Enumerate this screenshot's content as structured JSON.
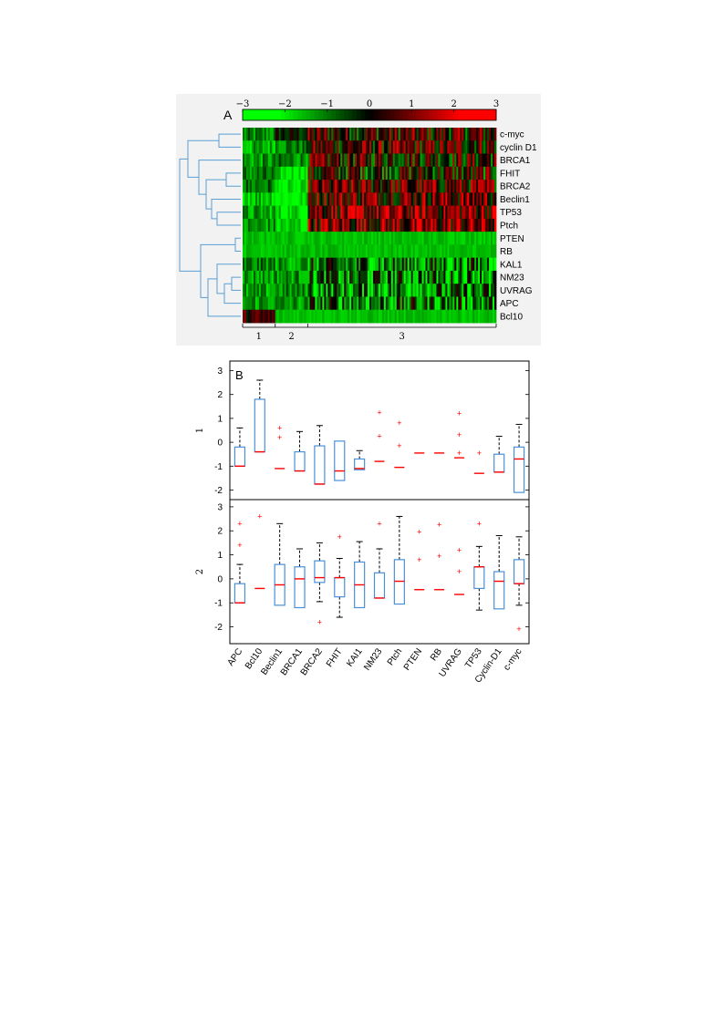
{
  "panel_labels": {
    "a": "A",
    "b": "B"
  },
  "colors": {
    "neg": "#00ff00",
    "mid": "#000000",
    "pos": "#ff0000",
    "dendrogram": "#5a9fd4",
    "box": "#4a90d9",
    "median": "#ff0000",
    "outlier": "#ff0000"
  },
  "chart_data": [
    {
      "type": "heatmap",
      "title": "",
      "colorbar": {
        "ticks": [
          "−3",
          "−2",
          "−1",
          "0",
          "1",
          "2",
          "3"
        ],
        "range": [
          -3,
          3
        ]
      },
      "rows": [
        "c-myc",
        "cyclin D1",
        "BRCA1",
        "FHIT",
        "BRCA2",
        "Beclin1",
        "TP53",
        "Ptch",
        "PTEN",
        "RB",
        "KAL1",
        "NM23",
        "UVRAG",
        "APC",
        "Bcl10"
      ],
      "clusters": [
        {
          "label": "1",
          "fraction": 0.13
        },
        {
          "label": "2",
          "fraction": 0.13
        },
        {
          "label": "3",
          "fraction": 0.74
        }
      ],
      "dendrogram": "hierarchical clustering of rows",
      "grid": false
    },
    {
      "type": "box",
      "ylabel": "1",
      "ylim": [
        -2.4,
        3.4
      ],
      "yticks": [
        -2,
        -1,
        0,
        1,
        2,
        3
      ],
      "categories": [
        "APC",
        "Bcl10",
        "Beclin1",
        "BRCA1",
        "BRCA2",
        "FHIT",
        "KAI1",
        "NM23",
        "Ptch",
        "PTEN",
        "RB",
        "UVRAG",
        "TP53",
        "Cyclin-D1",
        "c-myc"
      ],
      "boxes": [
        {
          "q1": -1.0,
          "median": -1.0,
          "q3": -0.2,
          "wlo": -1.0,
          "whi": 0.6,
          "out": []
        },
        {
          "q1": -0.4,
          "median": -0.4,
          "q3": 1.8,
          "wlo": -0.4,
          "whi": 2.6,
          "out": []
        },
        {
          "q1": -1.1,
          "median": -1.1,
          "q3": -1.1,
          "wlo": -1.1,
          "whi": -1.1,
          "out": [
            0.6,
            0.2
          ]
        },
        {
          "q1": -1.2,
          "median": -1.2,
          "q3": -0.4,
          "wlo": -1.2,
          "whi": 0.45,
          "out": []
        },
        {
          "q1": -1.75,
          "median": -1.75,
          "q3": -0.15,
          "wlo": -1.75,
          "whi": 0.7,
          "out": []
        },
        {
          "q1": -1.6,
          "median": -1.2,
          "q3": 0.05,
          "wlo": -1.6,
          "whi": 0.05,
          "out": []
        },
        {
          "q1": -1.15,
          "median": -1.1,
          "q3": -0.7,
          "wlo": -1.15,
          "whi": -0.35,
          "out": []
        },
        {
          "q1": -0.8,
          "median": -0.8,
          "q3": -0.8,
          "wlo": -0.8,
          "whi": -0.8,
          "out": [
            1.25,
            0.25
          ]
        },
        {
          "q1": -1.05,
          "median": -1.05,
          "q3": -1.05,
          "wlo": -1.05,
          "whi": -1.05,
          "out": [
            0.8,
            -0.15
          ]
        },
        {
          "q1": -0.45,
          "median": -0.45,
          "q3": -0.45,
          "wlo": -0.45,
          "whi": -0.45,
          "out": []
        },
        {
          "q1": -0.45,
          "median": -0.45,
          "q3": -0.45,
          "wlo": -0.45,
          "whi": -0.45,
          "out": []
        },
        {
          "q1": -0.65,
          "median": -0.65,
          "q3": -0.65,
          "wlo": -0.65,
          "whi": -0.65,
          "out": [
            1.2,
            0.3,
            -0.45
          ]
        },
        {
          "q1": -1.3,
          "median": -1.3,
          "q3": -1.3,
          "wlo": -1.3,
          "whi": -1.3,
          "out": [
            -0.45
          ]
        },
        {
          "q1": -1.25,
          "median": -1.25,
          "q3": -0.5,
          "wlo": -1.25,
          "whi": 0.25,
          "out": []
        },
        {
          "q1": -2.1,
          "median": -0.7,
          "q3": -0.2,
          "wlo": -2.1,
          "whi": 0.75,
          "out": []
        }
      ]
    },
    {
      "type": "box",
      "ylabel": "2",
      "ylim": [
        -2.7,
        3.3
      ],
      "yticks": [
        -2,
        -1,
        0,
        1,
        2,
        3
      ],
      "categories": [
        "APC",
        "Bcl10",
        "Beclin1",
        "BRCA1",
        "BRCA2",
        "FHIT",
        "KAI1",
        "NM23",
        "Ptch",
        "PTEN",
        "RB",
        "UVRAG",
        "TP53",
        "Cyclin-D1",
        "c-myc"
      ],
      "boxes": [
        {
          "q1": -1.0,
          "median": -1.0,
          "q3": -0.2,
          "wlo": -1.0,
          "whi": 0.6,
          "out": [
            2.3,
            1.4
          ]
        },
        {
          "q1": -0.4,
          "median": -0.4,
          "q3": -0.4,
          "wlo": -0.4,
          "whi": -0.4,
          "out": [
            2.6
          ]
        },
        {
          "q1": -1.1,
          "median": -0.25,
          "q3": 0.6,
          "wlo": -1.1,
          "whi": 2.3,
          "out": []
        },
        {
          "q1": -1.2,
          "median": 0.0,
          "q3": 0.5,
          "wlo": -1.2,
          "whi": 1.25,
          "out": []
        },
        {
          "q1": -0.15,
          "median": 0.05,
          "q3": 0.75,
          "wlo": -0.95,
          "whi": 1.5,
          "out": [
            -1.8
          ]
        },
        {
          "q1": -0.75,
          "median": 0.05,
          "q3": 0.05,
          "wlo": -1.6,
          "whi": 0.85,
          "out": [
            1.75
          ]
        },
        {
          "q1": -1.2,
          "median": -0.25,
          "q3": 0.7,
          "wlo": -1.2,
          "whi": 1.55,
          "out": []
        },
        {
          "q1": -0.8,
          "median": -0.8,
          "q3": 0.25,
          "wlo": -0.8,
          "whi": 1.25,
          "out": [
            2.3
          ]
        },
        {
          "q1": -1.05,
          "median": -0.1,
          "q3": 0.8,
          "wlo": -1.05,
          "whi": 2.6,
          "out": []
        },
        {
          "q1": -0.45,
          "median": -0.45,
          "q3": -0.45,
          "wlo": -0.45,
          "whi": -0.45,
          "out": [
            1.95,
            0.8
          ]
        },
        {
          "q1": -0.45,
          "median": -0.45,
          "q3": -0.45,
          "wlo": -0.45,
          "whi": -0.45,
          "out": [
            2.25,
            0.95
          ]
        },
        {
          "q1": -0.65,
          "median": -0.65,
          "q3": -0.65,
          "wlo": -0.65,
          "whi": -0.65,
          "out": [
            1.2,
            0.3
          ]
        },
        {
          "q1": -0.4,
          "median": 0.5,
          "q3": 0.5,
          "wlo": -1.3,
          "whi": 1.35,
          "out": [
            2.3
          ]
        },
        {
          "q1": -1.25,
          "median": -0.1,
          "q3": 0.3,
          "wlo": -1.25,
          "whi": 1.8,
          "out": []
        },
        {
          "q1": -0.2,
          "median": -0.2,
          "q3": 0.8,
          "wlo": -1.1,
          "whi": 1.75,
          "out": [
            -2.1
          ]
        }
      ]
    }
  ]
}
